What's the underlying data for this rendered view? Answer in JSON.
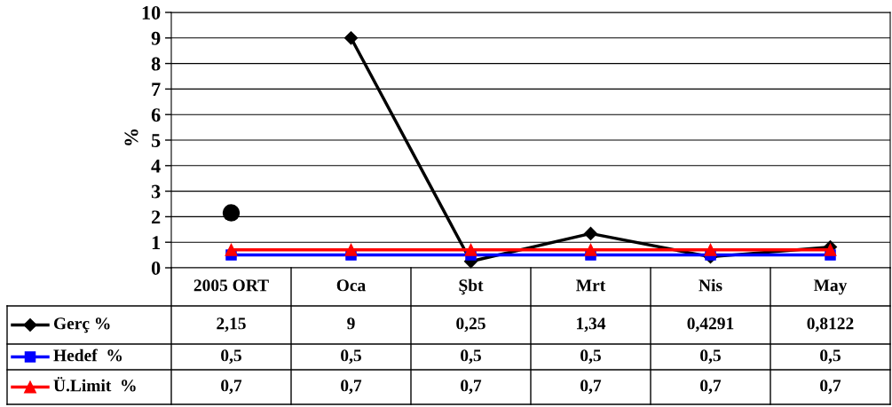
{
  "chart_data": {
    "type": "line",
    "ylabel": "%",
    "categories": [
      "2005 ORT",
      "Oca",
      "Şbt",
      "Mrt",
      "Nis",
      "May"
    ],
    "series": [
      {
        "name": "Gerç %",
        "color": "#000000",
        "marker": "diamond",
        "values": [
          null,
          9,
          0.25,
          1.34,
          0.4291,
          0.8122
        ],
        "value_labels": [
          "2,15",
          "9",
          "0,25",
          "1,34",
          "0,4291",
          "0,8122"
        ]
      },
      {
        "name": "Hedef  %",
        "color": "#0000ff",
        "marker": "square",
        "values": [
          0.5,
          0.5,
          0.5,
          0.5,
          0.5,
          0.5
        ],
        "value_labels": [
          "0,5",
          "0,5",
          "0,5",
          "0,5",
          "0,5",
          "0,5"
        ]
      },
      {
        "name": "Ü.Limit  %",
        "color": "#ff0000",
        "marker": "triangle",
        "values": [
          0.7,
          0.7,
          0.7,
          0.7,
          0.7,
          0.7
        ],
        "value_labels": [
          "0,7",
          "0,7",
          "0,7",
          "0,7",
          "0,7",
          "0,7"
        ]
      },
      {
        "type": "scatter",
        "color": "#000000",
        "marker": "circle",
        "values": [
          2.15,
          null,
          null,
          null,
          null,
          null
        ]
      }
    ],
    "ylim": [
      0,
      10
    ],
    "yticks": [
      0,
      1,
      2,
      3,
      4,
      5,
      6,
      7,
      8,
      9,
      10
    ],
    "grid": "y",
    "legend": "bottom left"
  }
}
